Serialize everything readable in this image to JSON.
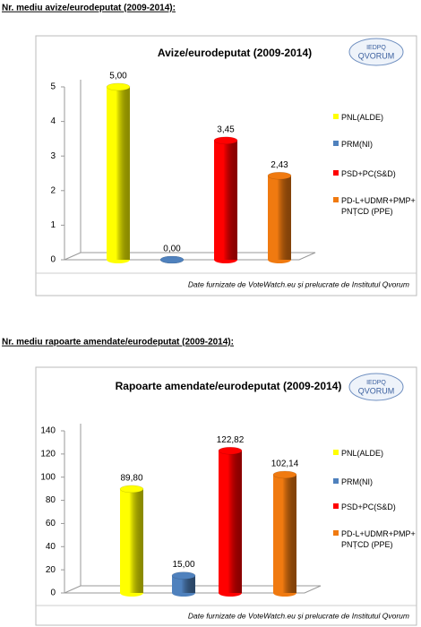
{
  "headings": [
    "Nr. mediu avize/eurodeputat (2009-2014):",
    "Nr. mediu rapoarte amendate/eurodeputat (2009-2014):"
  ],
  "chart_data": [
    {
      "type": "bar",
      "title": "Avize/eurodeputat (2009-2014)",
      "logo": [
        "IEDPQ",
        "QVORUM"
      ],
      "source": "Date furnizate de VoteWatch.eu și prelucrate de Institutul Qvorum",
      "ylim": [
        0,
        5
      ],
      "yticks": [
        0,
        1,
        2,
        3,
        4,
        5
      ],
      "series": [
        {
          "name": "PNL(ALDE)",
          "color": "#ffff00",
          "values": [
            5.0
          ],
          "value_labels": [
            "5,00"
          ]
        },
        {
          "name": "PRM(NI)",
          "color": "#4f81bd",
          "values": [
            0.0
          ],
          "value_labels": [
            "0,00"
          ]
        },
        {
          "name": "PSD+PC(S&D)",
          "color": "#ff0000",
          "values": [
            3.45
          ],
          "value_labels": [
            "3,45"
          ]
        },
        {
          "name": "PD-L+UDMR+PMP+ PNȚCD (PPE)",
          "color": "#f07a10",
          "values": [
            2.43
          ],
          "value_labels": [
            "2,43"
          ]
        }
      ]
    },
    {
      "type": "bar",
      "title": "Rapoarte amendate/eurodeputat (2009-2014)",
      "logo": [
        "IEDPQ",
        "QVORUM"
      ],
      "source": "Date furnizate de VoteWatch.eu și prelucrate de Institutul Qvorum",
      "ylim": [
        0,
        140
      ],
      "yticks": [
        0,
        20,
        40,
        60,
        80,
        100,
        120,
        140
      ],
      "series": [
        {
          "name": "PNL(ALDE)",
          "color": "#ffff00",
          "values": [
            89.8
          ],
          "value_labels": [
            "89,80"
          ]
        },
        {
          "name": "PRM(NI)",
          "color": "#4f81bd",
          "values": [
            15.0
          ],
          "value_labels": [
            "15,00"
          ]
        },
        {
          "name": "PSD+PC(S&D)",
          "color": "#ff0000",
          "values": [
            122.82
          ],
          "value_labels": [
            "122,82"
          ]
        },
        {
          "name": "PD-L+UDMR+PMP+ PNȚCD (PPE)",
          "color": "#f07a10",
          "values": [
            102.14
          ],
          "value_labels": [
            "102,14"
          ]
        }
      ]
    }
  ]
}
